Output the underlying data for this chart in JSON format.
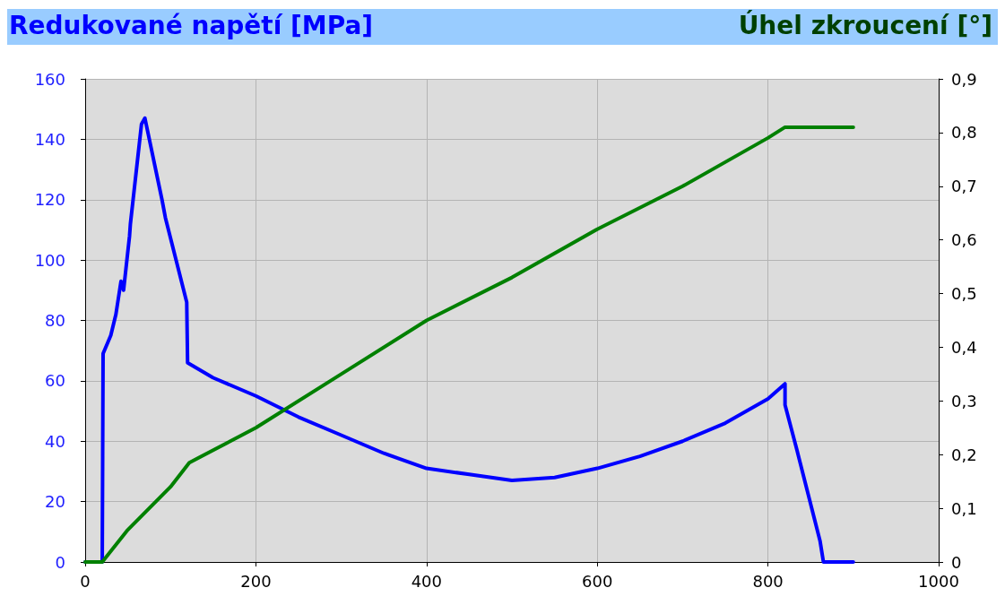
{
  "chart_data": {
    "type": "line",
    "ylabel": "Redukované napětí [MPa]",
    "y2label": "Úhel zkroucení [°]",
    "xlim": [
      0,
      1000
    ],
    "xticks": [
      0,
      200,
      400,
      600,
      800,
      1000
    ],
    "ylim": [
      0,
      160
    ],
    "yticks": [
      0,
      20,
      40,
      60,
      80,
      100,
      120,
      140,
      160
    ],
    "y2lim": [
      0,
      0.9
    ],
    "y2ticks": [
      {
        "value": 0,
        "label": "0"
      },
      {
        "value": 0.1,
        "label": "0,1"
      },
      {
        "value": 0.2,
        "label": "0,2"
      },
      {
        "value": 0.3,
        "label": "0,3"
      },
      {
        "value": 0.4,
        "label": "0,4"
      },
      {
        "value": 0.5,
        "label": "0,5"
      },
      {
        "value": 0.6,
        "label": "0,6"
      },
      {
        "value": 0.7,
        "label": "0,7"
      },
      {
        "value": 0.8,
        "label": "0,8"
      },
      {
        "value": 0.9,
        "label": "0,9"
      }
    ],
    "grid": true,
    "marker": "none",
    "line_style": "solid",
    "series": [
      {
        "color": "#0000ff",
        "x": [
          0,
          20,
          21,
          30,
          36,
          42,
          45,
          52,
          53,
          66,
          70,
          90,
          94,
          119,
          120,
          150,
          200,
          250,
          300,
          350,
          400,
          450,
          500,
          550,
          600,
          650,
          700,
          750,
          800,
          820,
          820,
          834,
          861,
          865,
          900
        ],
        "values": [
          0,
          0,
          69,
          75,
          82,
          93,
          90,
          108,
          112,
          145,
          147,
          120,
          114,
          86,
          66,
          61,
          55,
          48,
          42,
          36,
          31,
          29,
          27,
          28,
          31,
          35,
          40,
          46,
          54,
          59,
          52,
          37,
          7,
          0,
          0
        ]
      },
      {
        "color": "#008000",
        "axis": "y2",
        "x": [
          0,
          20,
          50,
          100,
          122,
          200,
          300,
          400,
          500,
          600,
          700,
          800,
          820,
          900
        ],
        "values": [
          0,
          0,
          0.06,
          0.14,
          0.185,
          0.25,
          0.35,
          0.45,
          0.53,
          0.62,
          0.7,
          0.79,
          0.81,
          0.81
        ]
      }
    ]
  }
}
